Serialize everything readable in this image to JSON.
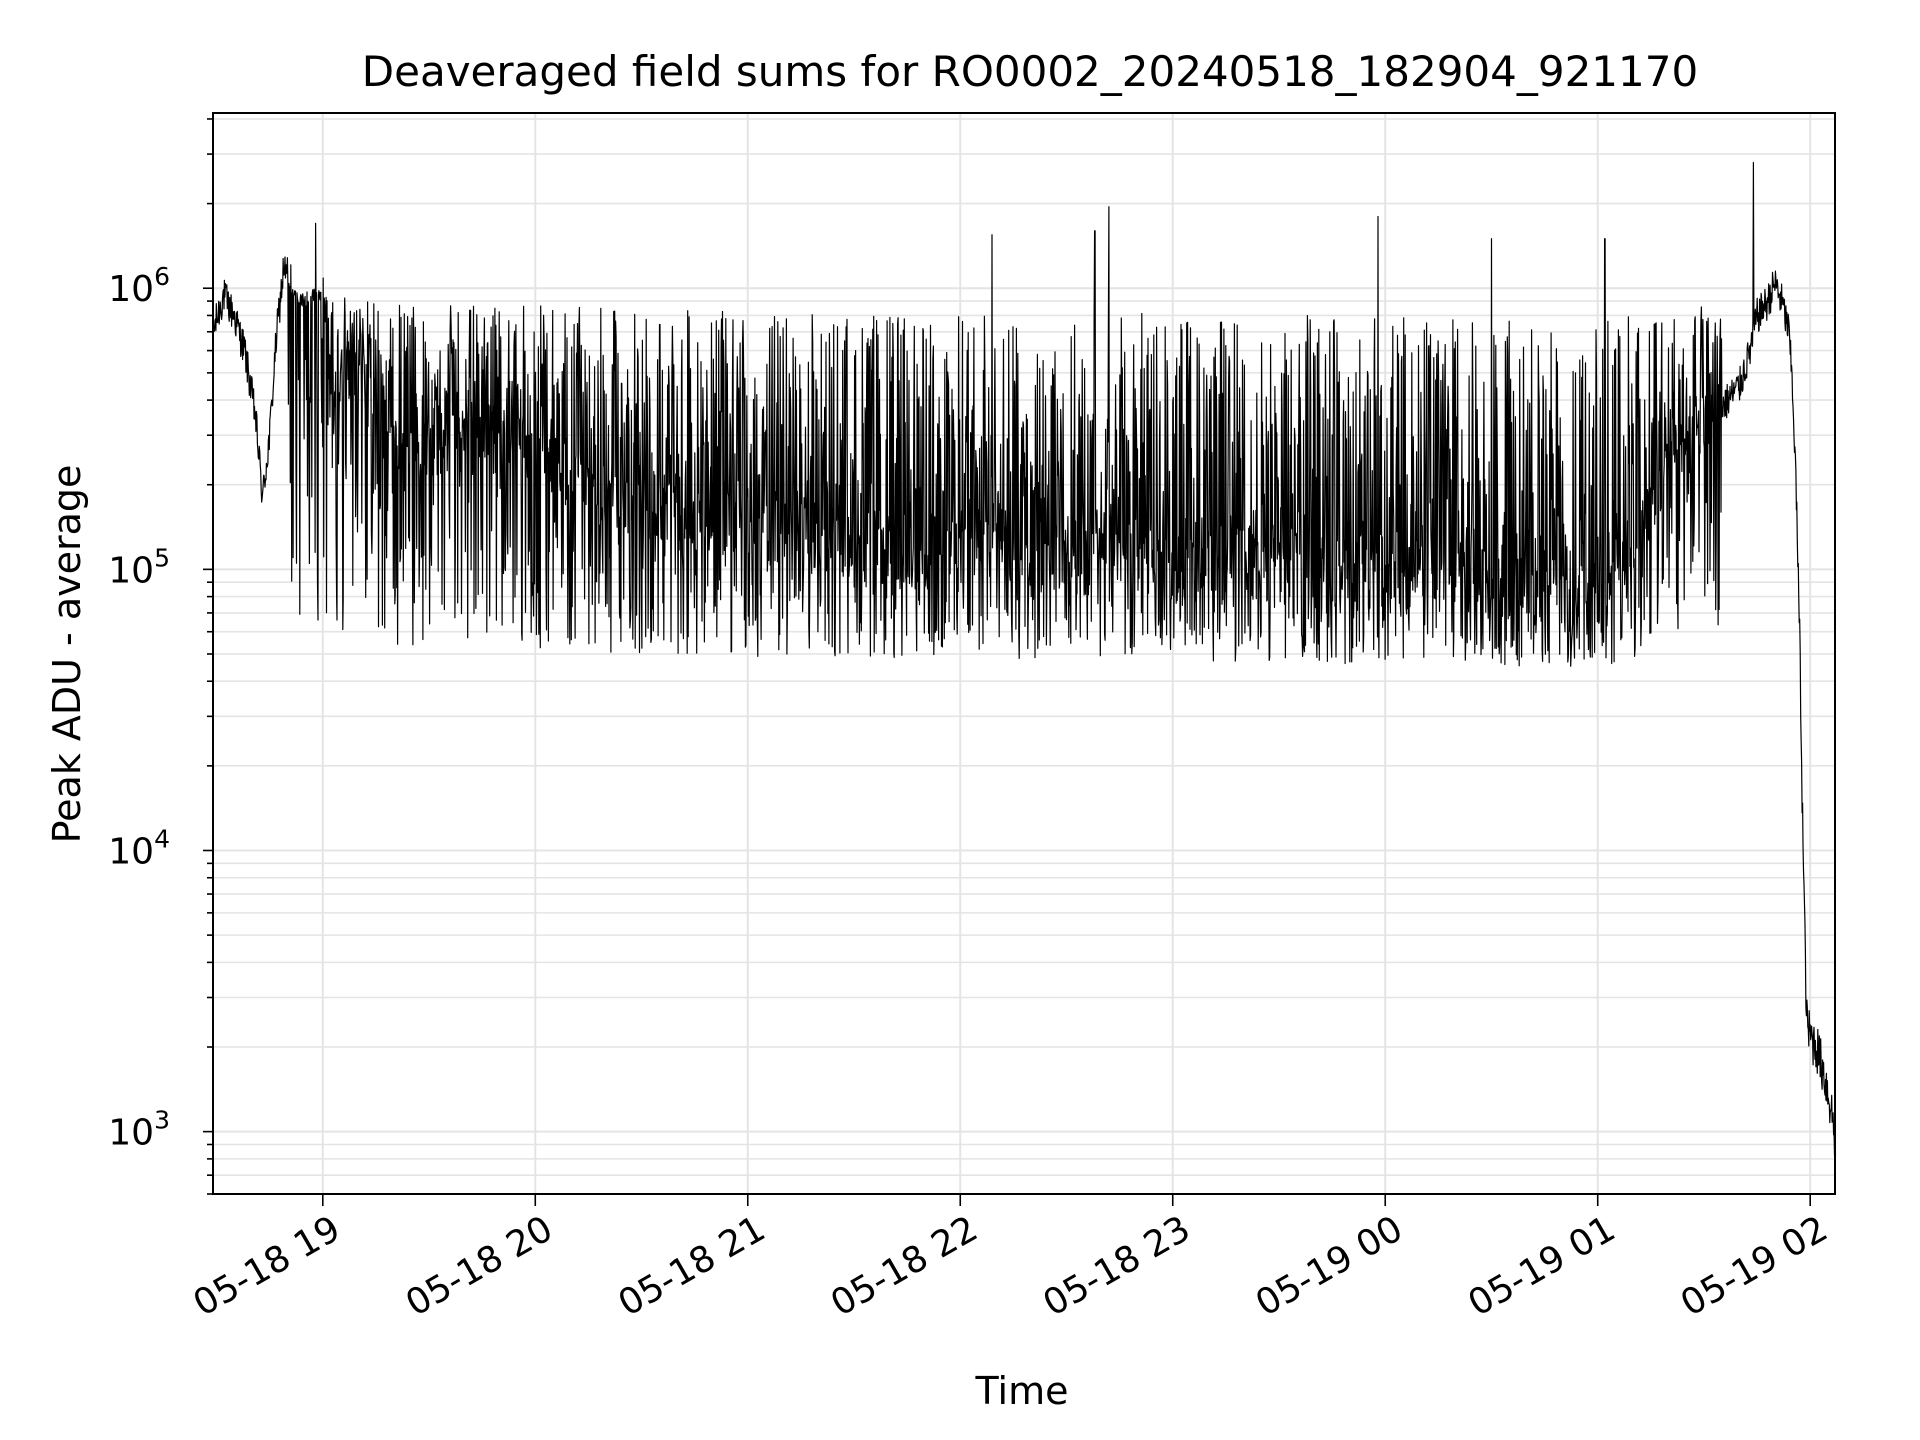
{
  "chart_data": {
    "type": "line",
    "title": "Deaveraged field sums for RO0002_20240518_182904_921170",
    "xlabel": "Time",
    "ylabel": "Peak ADU - average",
    "yscale": "log",
    "grid": true,
    "x_ticks": [
      "05-18 19",
      "05-18 20",
      "05-18 21",
      "05-18 22",
      "05-18 23",
      "05-19 00",
      "05-19 01",
      "05-19 02"
    ],
    "y_ticks": [
      {
        "base": "10",
        "exp": "3",
        "value": 1000
      },
      {
        "base": "10",
        "exp": "4",
        "value": 10000
      },
      {
        "base": "10",
        "exp": "5",
        "value": 100000
      },
      {
        "base": "10",
        "exp": "6",
        "value": 1000000
      }
    ],
    "xlim": [
      "2024-05-18 18:29",
      "2024-05-19 02:07"
    ],
    "ylim": [
      600,
      4200000
    ],
    "series": [
      {
        "color": "#000000",
        "points": [
          [
            "2024-05-18 18:29",
            700000
          ],
          [
            "2024-05-18 18:32",
            950000
          ],
          [
            "2024-05-18 18:35",
            800000
          ],
          [
            "2024-05-18 18:38",
            600000
          ],
          [
            "2024-05-18 18:41",
            350000
          ],
          [
            "2024-05-18 18:43",
            180000
          ],
          [
            "2024-05-18 18:45",
            300000
          ],
          [
            "2024-05-18 18:47",
            700000
          ],
          [
            "2024-05-18 18:49",
            1200000
          ],
          [
            "2024-05-18 18:52",
            900000
          ],
          [
            "2024-05-18 18:55",
            850000
          ],
          [
            "2024-05-18 18:58",
            950000
          ],
          [
            "2024-05-18 19:01",
            800000
          ],
          [
            "2024-05-18 19:03",
            350000
          ],
          [
            "2024-05-18 19:06",
            600000
          ],
          [
            "2024-05-18 19:10",
            500000
          ],
          [
            "2024-05-18 19:15",
            400000
          ],
          [
            "2024-05-18 19:20",
            300000
          ],
          [
            "2024-05-18 19:25",
            250000
          ],
          [
            "2024-05-18 19:30",
            300000
          ],
          [
            "2024-05-18 19:40",
            280000
          ],
          [
            "2024-05-18 19:50",
            300000
          ],
          [
            "2024-05-18 20:00",
            250000
          ],
          [
            "2024-05-18 20:15",
            200000
          ],
          [
            "2024-05-18 20:30",
            180000
          ],
          [
            "2024-05-18 20:45",
            160000
          ],
          [
            "2024-05-18 21:00",
            150000
          ],
          [
            "2024-05-18 21:15",
            140000
          ],
          [
            "2024-05-18 21:30",
            130000
          ],
          [
            "2024-05-18 21:45",
            120000
          ],
          [
            "2024-05-18 22:00",
            120000
          ],
          [
            "2024-05-18 22:15",
            130000
          ],
          [
            "2024-05-18 22:30",
            120000
          ],
          [
            "2024-05-18 22:45",
            130000
          ],
          [
            "2024-05-18 23:00",
            120000
          ],
          [
            "2024-05-18 23:15",
            110000
          ],
          [
            "2024-05-18 23:30",
            110000
          ],
          [
            "2024-05-18 23:45",
            105000
          ],
          [
            "2024-05-19 00:00",
            100000
          ],
          [
            "2024-05-19 00:15",
            100000
          ],
          [
            "2024-05-19 00:30",
            95000
          ],
          [
            "2024-05-19 00:45",
            90000
          ],
          [
            "2024-05-19 00:55",
            80000
          ],
          [
            "2024-05-19 01:05",
            100000
          ],
          [
            "2024-05-19 01:10",
            130000
          ],
          [
            "2024-05-19 01:15",
            180000
          ],
          [
            "2024-05-19 01:20",
            230000
          ],
          [
            "2024-05-19 01:25",
            280000
          ],
          [
            "2024-05-19 01:30",
            330000
          ],
          [
            "2024-05-19 01:35",
            380000
          ],
          [
            "2024-05-19 01:40",
            450000
          ],
          [
            "2024-05-19 01:43",
            600000
          ],
          [
            "2024-05-19 01:45",
            800000
          ],
          [
            "2024-05-19 01:48",
            900000
          ],
          [
            "2024-05-19 01:50",
            1050000
          ],
          [
            "2024-05-19 01:52",
            900000
          ],
          [
            "2024-05-19 01:54",
            700000
          ],
          [
            "2024-05-19 01:55",
            450000
          ],
          [
            "2024-05-19 01:56",
            200000
          ],
          [
            "2024-05-19 01:57",
            60000
          ],
          [
            "2024-05-19 01:58",
            10000
          ],
          [
            "2024-05-19 01:59",
            2500
          ],
          [
            "2024-05-19 02:00",
            2200
          ],
          [
            "2024-05-19 02:02",
            2000
          ],
          [
            "2024-05-19 02:04",
            1600
          ],
          [
            "2024-05-19 02:06",
            1200
          ],
          [
            "2024-05-19 02:07",
            950
          ]
        ]
      }
    ],
    "spikes": [
      [
        "2024-05-18 18:58",
        1700000
      ],
      [
        "2024-05-18 22:09",
        1550000
      ],
      [
        "2024-05-18 22:38",
        1600000
      ],
      [
        "2024-05-18 22:42",
        1950000
      ],
      [
        "2024-05-18 23:58",
        1800000
      ],
      [
        "2024-05-19 00:30",
        1500000
      ],
      [
        "2024-05-19 01:02",
        1500000
      ],
      [
        "2024-05-19 01:44",
        2800000
      ]
    ],
    "noise": {
      "upper_reach": 1000000,
      "lower_reach": 40000
    }
  }
}
